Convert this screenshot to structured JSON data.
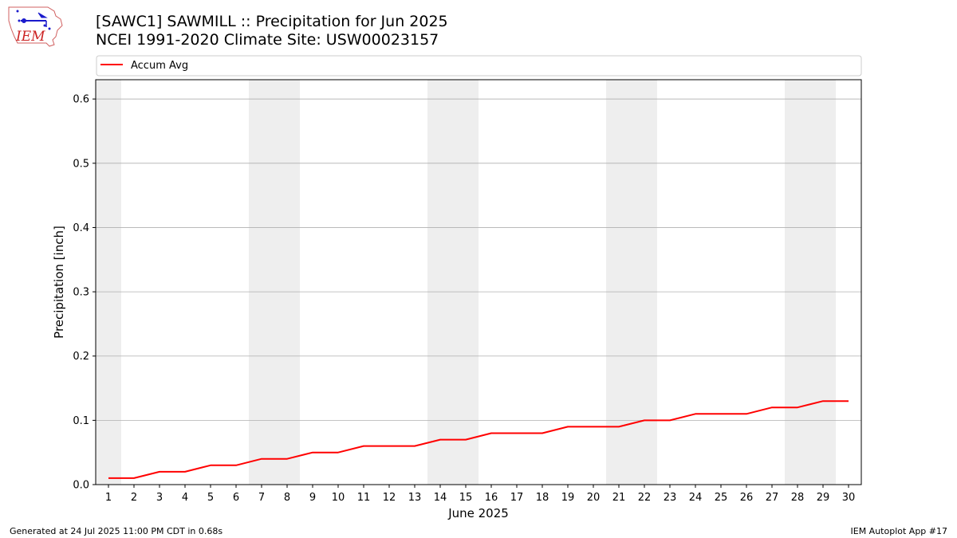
{
  "header": {
    "title_line1": "[SAWC1] SAWMILL :: Precipitation for Jun 2025",
    "title_line2": "NCEI 1991-2020 Climate Site: USW00023157"
  },
  "logo": {
    "text": "IEM",
    "icon": "iem-iowa-logo-icon"
  },
  "footer": {
    "generated": "Generated at 24 Jul 2025 11:00 PM CDT in 0.68s",
    "app": "IEM Autoplot App #17"
  },
  "colors": {
    "series": "#ff0000",
    "weekend_shade": "#eeeeee",
    "grid": "#b0b0b0"
  },
  "chart_data": {
    "type": "line",
    "title": "[SAWC1] SAWMILL :: Precipitation for Jun 2025",
    "subtitle": "NCEI 1991-2020 Climate Site: USW00023157",
    "xlabel": "June 2025",
    "ylabel": "Precipitation [inch]",
    "x": [
      1,
      2,
      3,
      4,
      5,
      6,
      7,
      8,
      9,
      10,
      11,
      12,
      13,
      14,
      15,
      16,
      17,
      18,
      19,
      20,
      21,
      22,
      23,
      24,
      25,
      26,
      27,
      28,
      29,
      30
    ],
    "xticks": [
      "1",
      "2",
      "3",
      "4",
      "5",
      "6",
      "7",
      "8",
      "9",
      "10",
      "11",
      "12",
      "13",
      "14",
      "15",
      "16",
      "17",
      "18",
      "19",
      "20",
      "21",
      "22",
      "23",
      "24",
      "25",
      "26",
      "27",
      "28",
      "29",
      "30"
    ],
    "xlim": [
      0.5,
      30.5
    ],
    "ylim": [
      0,
      0.63
    ],
    "yticks": [
      0.0,
      0.1,
      0.2,
      0.3,
      0.4,
      0.5,
      0.6
    ],
    "ytick_labels": [
      "0.0",
      "0.1",
      "0.2",
      "0.3",
      "0.4",
      "0.5",
      "0.6"
    ],
    "grid": "y",
    "legend": "top",
    "shaded_days": [
      1,
      7,
      8,
      14,
      15,
      21,
      22,
      28,
      29
    ],
    "series": [
      {
        "name": "Accum Avg",
        "color": "#ff0000",
        "values": [
          0.01,
          0.01,
          0.02,
          0.02,
          0.03,
          0.03,
          0.04,
          0.04,
          0.05,
          0.05,
          0.06,
          0.06,
          0.06,
          0.07,
          0.07,
          0.08,
          0.08,
          0.08,
          0.09,
          0.09,
          0.09,
          0.1,
          0.1,
          0.11,
          0.11,
          0.11,
          0.12,
          0.12,
          0.13,
          0.13
        ]
      }
    ]
  }
}
